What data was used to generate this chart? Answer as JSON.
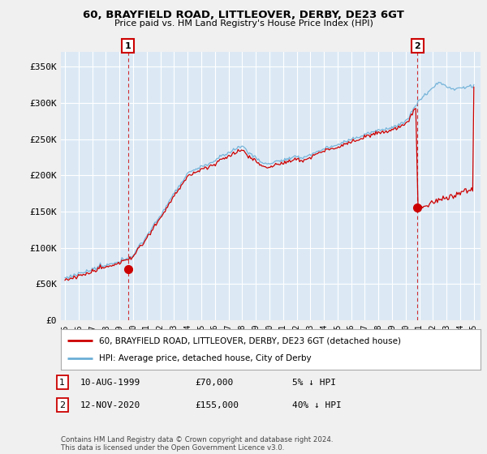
{
  "title": "60, BRAYFIELD ROAD, LITTLEOVER, DERBY, DE23 6GT",
  "subtitle": "Price paid vs. HM Land Registry's House Price Index (HPI)",
  "legend_line1": "60, BRAYFIELD ROAD, LITTLEOVER, DERBY, DE23 6GT (detached house)",
  "legend_line2": "HPI: Average price, detached house, City of Derby",
  "annotation1_date": "10-AUG-1999",
  "annotation1_price": "£70,000",
  "annotation1_pct": "5% ↓ HPI",
  "annotation2_date": "12-NOV-2020",
  "annotation2_price": "£155,000",
  "annotation2_pct": "40% ↓ HPI",
  "footnote": "Contains HM Land Registry data © Crown copyright and database right 2024.\nThis data is licensed under the Open Government Licence v3.0.",
  "sale1_x": 1999.62,
  "sale1_y": 70000,
  "sale2_x": 2020.87,
  "sale2_y": 155000,
  "hpi_color": "#6baed6",
  "price_color": "#cc0000",
  "chart_bg": "#dce9f5",
  "fig_bg": "#f0f0f0",
  "ylim": [
    0,
    370000
  ],
  "yticks": [
    0,
    50000,
    100000,
    150000,
    200000,
    250000,
    300000,
    350000
  ],
  "xlim_start": 1994.7,
  "xlim_end": 2025.5
}
